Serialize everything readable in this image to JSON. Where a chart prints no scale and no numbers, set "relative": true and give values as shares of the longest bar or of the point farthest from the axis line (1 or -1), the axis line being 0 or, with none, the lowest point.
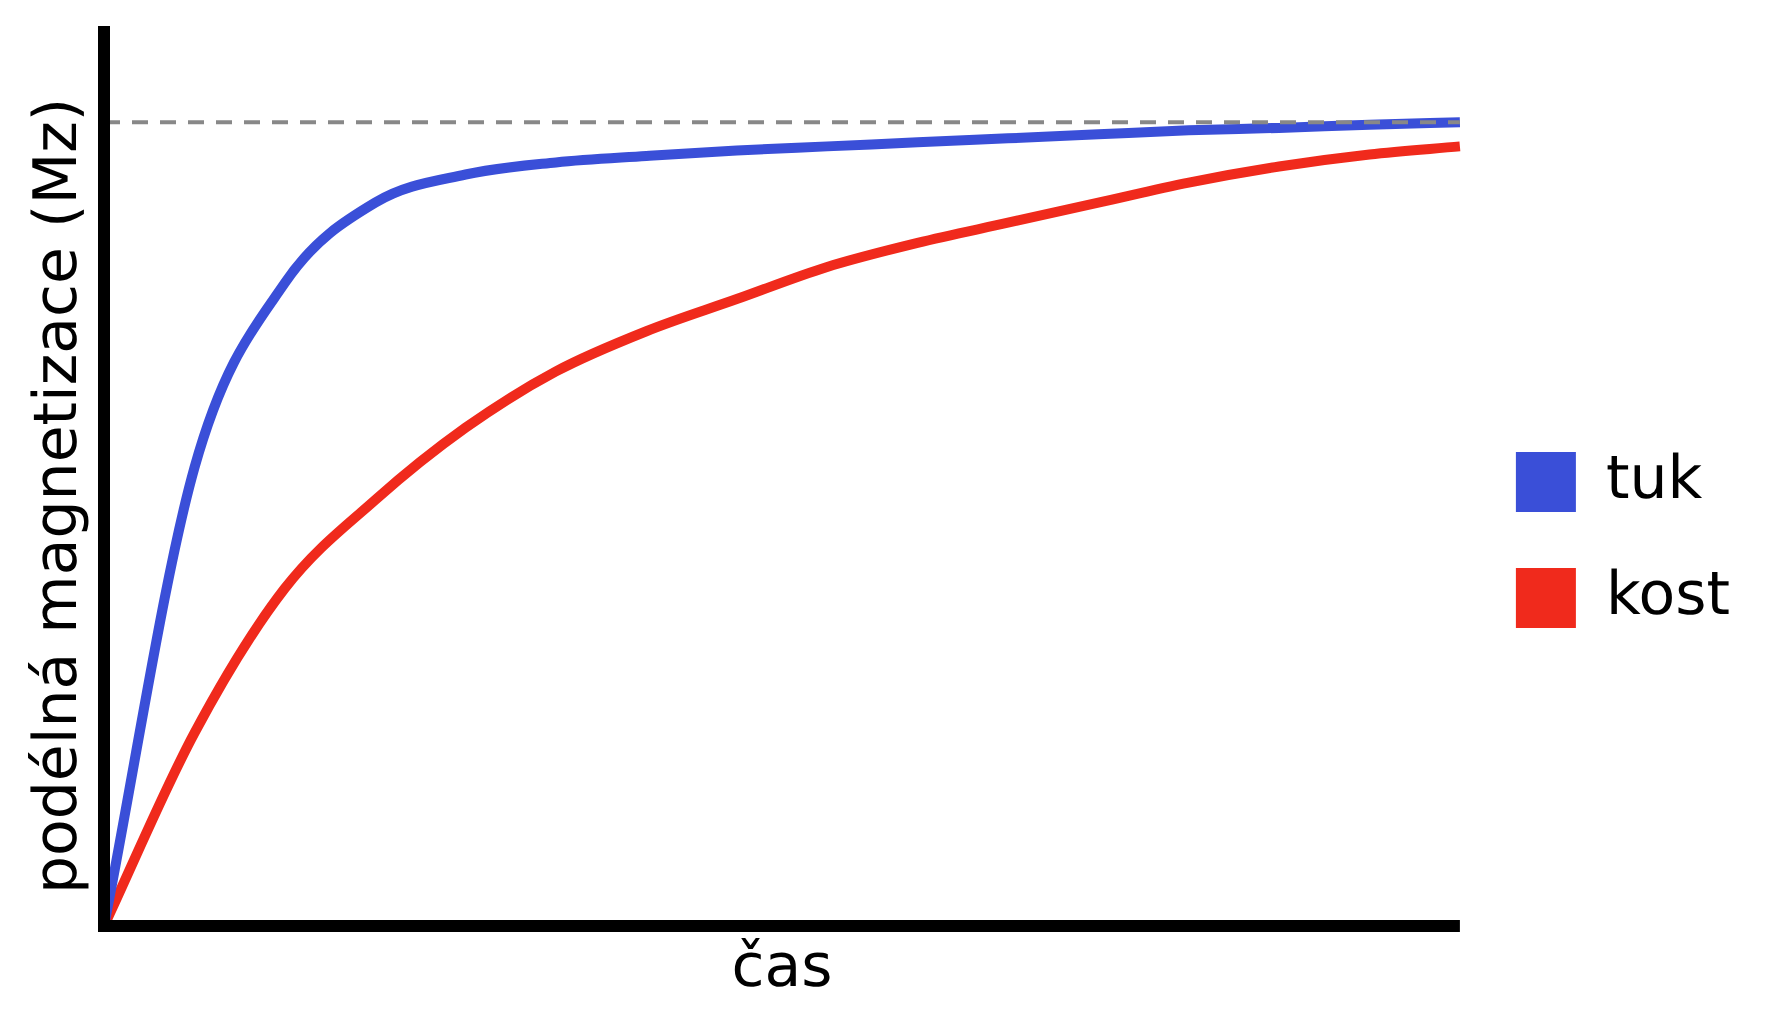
{
  "chart_data": {
    "type": "line",
    "relative": true,
    "xlabel": "čas",
    "ylabel": "podélná magnetizace (Mz)",
    "categories": [
      null,
      null,
      null,
      null,
      null,
      null,
      null,
      null,
      null,
      null,
      null,
      null,
      null,
      null,
      null,
      null
    ],
    "series": [
      {
        "name": "tuk",
        "color": "#3a4fd8",
        "values": [
          0,
          0.57,
          0.8,
          0.9,
          0.935,
          0.95,
          0.958,
          0.965,
          0.97,
          0.975,
          0.98,
          0.985,
          0.99,
          0.993,
          0.997,
          1
        ]
      },
      {
        "name": "kost",
        "color": "#f02a1c",
        "values": [
          0,
          0.24,
          0.42,
          0.53,
          0.62,
          0.69,
          0.74,
          0.78,
          0.82,
          0.85,
          0.875,
          0.9,
          0.925,
          0.945,
          0.96,
          0.97
        ]
      }
    ],
    "ref_lines": [
      {
        "axis": "y",
        "value": 1,
        "color": "#888888",
        "line_style": "dashed"
      }
    ],
    "legend": "right",
    "grid": false
  }
}
